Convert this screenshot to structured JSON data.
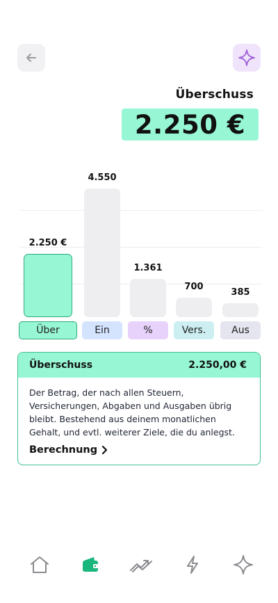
{
  "header": {
    "label": "Überschuss",
    "value": "2.250 €"
  },
  "chart_data": {
    "type": "bar",
    "categories": [
      "Über",
      "Ein",
      "%",
      "Vers.",
      "Aus"
    ],
    "values": [
      2250,
      4550,
      1361,
      700,
      385
    ],
    "value_labels": [
      "2.250 €",
      "4.550",
      "1.361",
      "700",
      "385"
    ],
    "colors": [
      "#97f7d5",
      "#eeeef1",
      "#eeeef1",
      "#eeeef1",
      "#eeeef1"
    ],
    "tab_colors": [
      "#97f7d5",
      "#d4e4ff",
      "#e7d2fb",
      "#cdeff2",
      "#e4e5ee"
    ],
    "selected": 0,
    "grid": true
  },
  "card": {
    "title": "Überschuss",
    "amount": "2.250,00 €",
    "description": "Der Betrag, der nach allen Steuern, Versicherungen, Abgaben und Ausgaben übrig bleibt. Bestehend aus deinem monatlichen Gehalt, und evtl. weiterer Ziele, die du anlegst.",
    "link": "Berechnung"
  },
  "nav": {
    "items": [
      "home-icon",
      "wallet-icon",
      "trend-icon",
      "lightning-icon",
      "sparkle-icon"
    ],
    "active": 1,
    "active_color": "#19b67d"
  }
}
